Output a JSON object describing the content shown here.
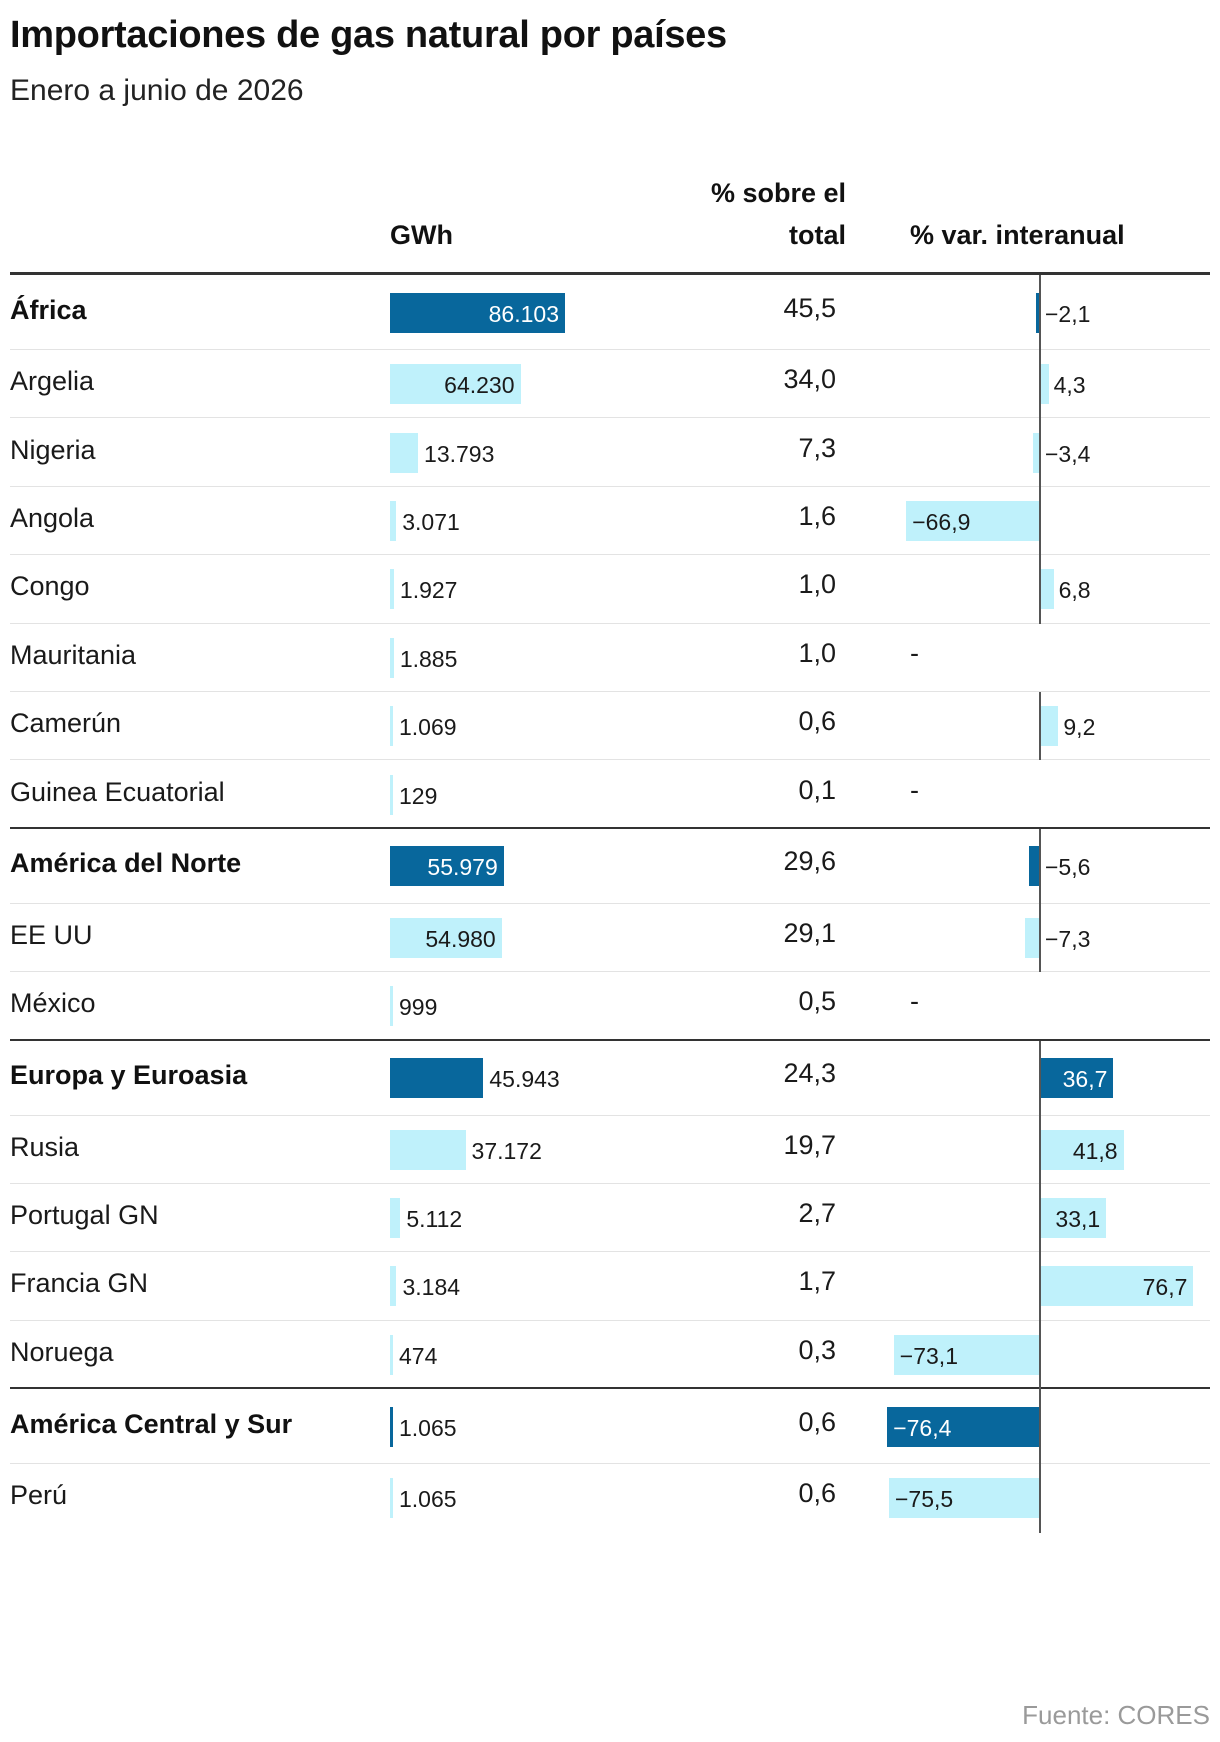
{
  "title": "Importaciones de gas natural por países",
  "subtitle": "Enero a junio de 2026",
  "source": "Fuente: CORES",
  "colors": {
    "region": "#08679c",
    "country": "#bff1fb",
    "rule": "#333333"
  },
  "headers": {
    "gwh": "GWh",
    "share_line1": "% sobre el",
    "share_line2": "total",
    "var": "% var. interanual"
  },
  "chart_data": {
    "type": "table",
    "columns": [
      "GWh",
      "% sobre el total",
      "% var. interanual"
    ],
    "groups": [
      {
        "region": {
          "name": "África",
          "gwh": 86103,
          "gwh_label": "86.103",
          "share": "45,5",
          "var": -2.1,
          "var_label": "−2,1"
        },
        "countries": [
          {
            "name": "Argelia",
            "gwh": 64230,
            "gwh_label": "64.230",
            "share": "34,0",
            "var": 4.3,
            "var_label": "4,3"
          },
          {
            "name": "Nigeria",
            "gwh": 13793,
            "gwh_label": "13.793",
            "share": "7,3",
            "var": -3.4,
            "var_label": "−3,4"
          },
          {
            "name": "Angola",
            "gwh": 3071,
            "gwh_label": "3.071",
            "share": "1,6",
            "var": -66.9,
            "var_label": "−66,9"
          },
          {
            "name": "Congo",
            "gwh": 1927,
            "gwh_label": "1.927",
            "share": "1,0",
            "var": 6.8,
            "var_label": "6,8"
          },
          {
            "name": "Mauritania",
            "gwh": 1885,
            "gwh_label": "1.885",
            "share": "1,0",
            "var": null,
            "var_label": "-"
          },
          {
            "name": "Camerún",
            "gwh": 1069,
            "gwh_label": "1.069",
            "share": "0,6",
            "var": 9.2,
            "var_label": "9,2"
          },
          {
            "name": "Guinea Ecuatorial",
            "gwh": 129,
            "gwh_label": "129",
            "share": "0,1",
            "var": null,
            "var_label": "-"
          }
        ]
      },
      {
        "region": {
          "name": "América del Norte",
          "gwh": 55979,
          "gwh_label": "55.979",
          "share": "29,6",
          "var": -5.6,
          "var_label": "−5,6"
        },
        "countries": [
          {
            "name": "EE UU",
            "gwh": 54980,
            "gwh_label": "54.980",
            "share": "29,1",
            "var": -7.3,
            "var_label": "−7,3"
          },
          {
            "name": "México",
            "gwh": 999,
            "gwh_label": "999",
            "share": "0,5",
            "var": null,
            "var_label": "-"
          }
        ]
      },
      {
        "region": {
          "name": "Europa y Euroasia",
          "gwh": 45943,
          "gwh_label": "45.943",
          "share": "24,3",
          "var": 36.7,
          "var_label": "36,7"
        },
        "countries": [
          {
            "name": "Rusia",
            "gwh": 37172,
            "gwh_label": "37.172",
            "share": "19,7",
            "var": 41.8,
            "var_label": "41,8"
          },
          {
            "name": "Portugal GN",
            "gwh": 5112,
            "gwh_label": "5.112",
            "share": "2,7",
            "var": 33.1,
            "var_label": "33,1"
          },
          {
            "name": "Francia GN",
            "gwh": 3184,
            "gwh_label": "3.184",
            "share": "1,7",
            "var": 76.7,
            "var_label": "76,7"
          },
          {
            "name": "Noruega",
            "gwh": 474,
            "gwh_label": "474",
            "share": "0,3",
            "var": -73.1,
            "var_label": "−73,1"
          }
        ]
      },
      {
        "region": {
          "name": "América Central y Sur",
          "gwh": 1065,
          "gwh_label": "1.065",
          "share": "0,6",
          "var": -76.4,
          "var_label": "−76,4"
        },
        "countries": [
          {
            "name": "Perú",
            "gwh": 1065,
            "gwh_label": "1.065",
            "share": "0,6",
            "var": -75.5,
            "var_label": "−75,5"
          }
        ]
      }
    ]
  }
}
